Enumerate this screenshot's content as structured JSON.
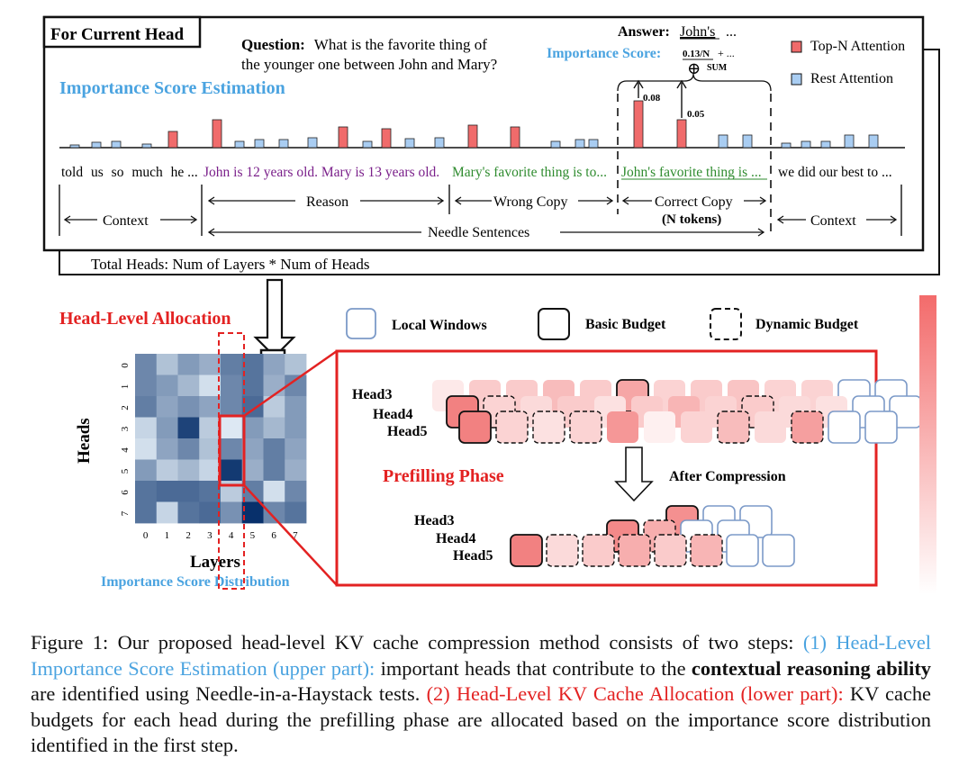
{
  "colors": {
    "top_n": "#f06b6b",
    "rest": "#a9cdf2",
    "blue_text": "#4aa3e0",
    "red": "#e32222",
    "reason_text": "#7a1f8a",
    "copy_text": "#2e8b2e",
    "window_border": "#7c9ac8"
  },
  "upper": {
    "current_head_label": "For Current Head",
    "question_bold": "Question:",
    "question_line1": "What is the favorite thing of",
    "question_line2": "the younger one between John and Mary?",
    "answer_bold": "Answer:",
    "answer_word": "John's",
    "answer_ellipsis": "...",
    "importance_score_label": "Importance Score:",
    "score_term": "0.13/N",
    "score_tail": "+ ...",
    "sum_symbol": "⊕",
    "sum_label": "SUM",
    "section_title": "Importance Score Estimation",
    "legend_top": "Top-N Attention",
    "legend_rest": "Rest Attention",
    "bar_value_1": "0.08",
    "bar_value_2": "0.05",
    "context_words": [
      "told",
      "us",
      "so",
      "much",
      "he ..."
    ],
    "reason_text": "John is 12 years old. Mary is 13 years old.",
    "wrong_text": "Mary's favorite thing is to...",
    "correct_text": "John's favorite thing is ...",
    "tail_text": "we did our best to ...",
    "label_context_left": "Context",
    "label_reason": "Reason",
    "label_wrong": "Wrong  Copy",
    "label_correct": "Correct Copy",
    "label_n_tokens": "(N tokens)",
    "label_context_right": "Context",
    "label_needle": "Needle Sentences",
    "total_heads": "Total Heads: Num of Layers * Num of Heads"
  },
  "lower": {
    "allocation_title": "Head-Level Allocation",
    "legend_local": "Local Windows",
    "legend_basic": "Basic Budget",
    "legend_dynamic": "Dynamic Budget",
    "heads_axis": "Heads",
    "layers_axis": "Layers",
    "distribution_label": "Importance Score Distribution",
    "prefill_label": "Prefilling Phase",
    "after_label": "After  Compression",
    "head_labels_top": [
      "Head3",
      "Head4",
      "Head5"
    ],
    "head_labels_bottom": [
      "Head3",
      "Head4",
      "Head5"
    ]
  },
  "heatmap": {
    "rows": [
      "0",
      "1",
      "2",
      "3",
      "4",
      "5",
      "6",
      "7"
    ],
    "cols": [
      "0",
      "1",
      "2",
      "3",
      "4",
      "5",
      "6",
      "7"
    ],
    "values": [
      [
        0.55,
        0.25,
        0.45,
        0.35,
        0.6,
        0.65,
        0.4,
        0.25
      ],
      [
        0.55,
        0.45,
        0.3,
        0.1,
        0.55,
        0.65,
        0.35,
        0.55
      ],
      [
        0.6,
        0.4,
        0.5,
        0.4,
        0.55,
        0.7,
        0.2,
        0.45
      ],
      [
        0.15,
        0.45,
        0.9,
        0.2,
        0.05,
        0.45,
        0.3,
        0.45
      ],
      [
        0.1,
        0.4,
        0.55,
        0.25,
        0.55,
        0.4,
        0.6,
        0.4
      ],
      [
        0.45,
        0.2,
        0.3,
        0.15,
        0.95,
        0.35,
        0.6,
        0.35
      ],
      [
        0.65,
        0.7,
        0.7,
        0.65,
        0.2,
        0.6,
        0.1,
        0.55
      ],
      [
        0.65,
        0.15,
        0.65,
        0.7,
        0.5,
        1.0,
        0.55,
        0.65
      ]
    ]
  },
  "caption": {
    "lead": "Figure 1: Our proposed head-level KV cache compression method consists of two steps:",
    "step1_label": "(1) Head-Level Importance Score Estimation (upper part):",
    "step1_text_a": "important heads that contribute to the",
    "step1_bold": "contextual reasoning ability",
    "step1_text_b": "are identified using Needle-in-a-Haystack tests.",
    "step2_label": "(2) Head-Level KV Cache Allocation (lower part):",
    "step2_text": "KV cache budgets for each head during the prefilling phase are allocated based on the importance score distribution identified in the first step."
  }
}
